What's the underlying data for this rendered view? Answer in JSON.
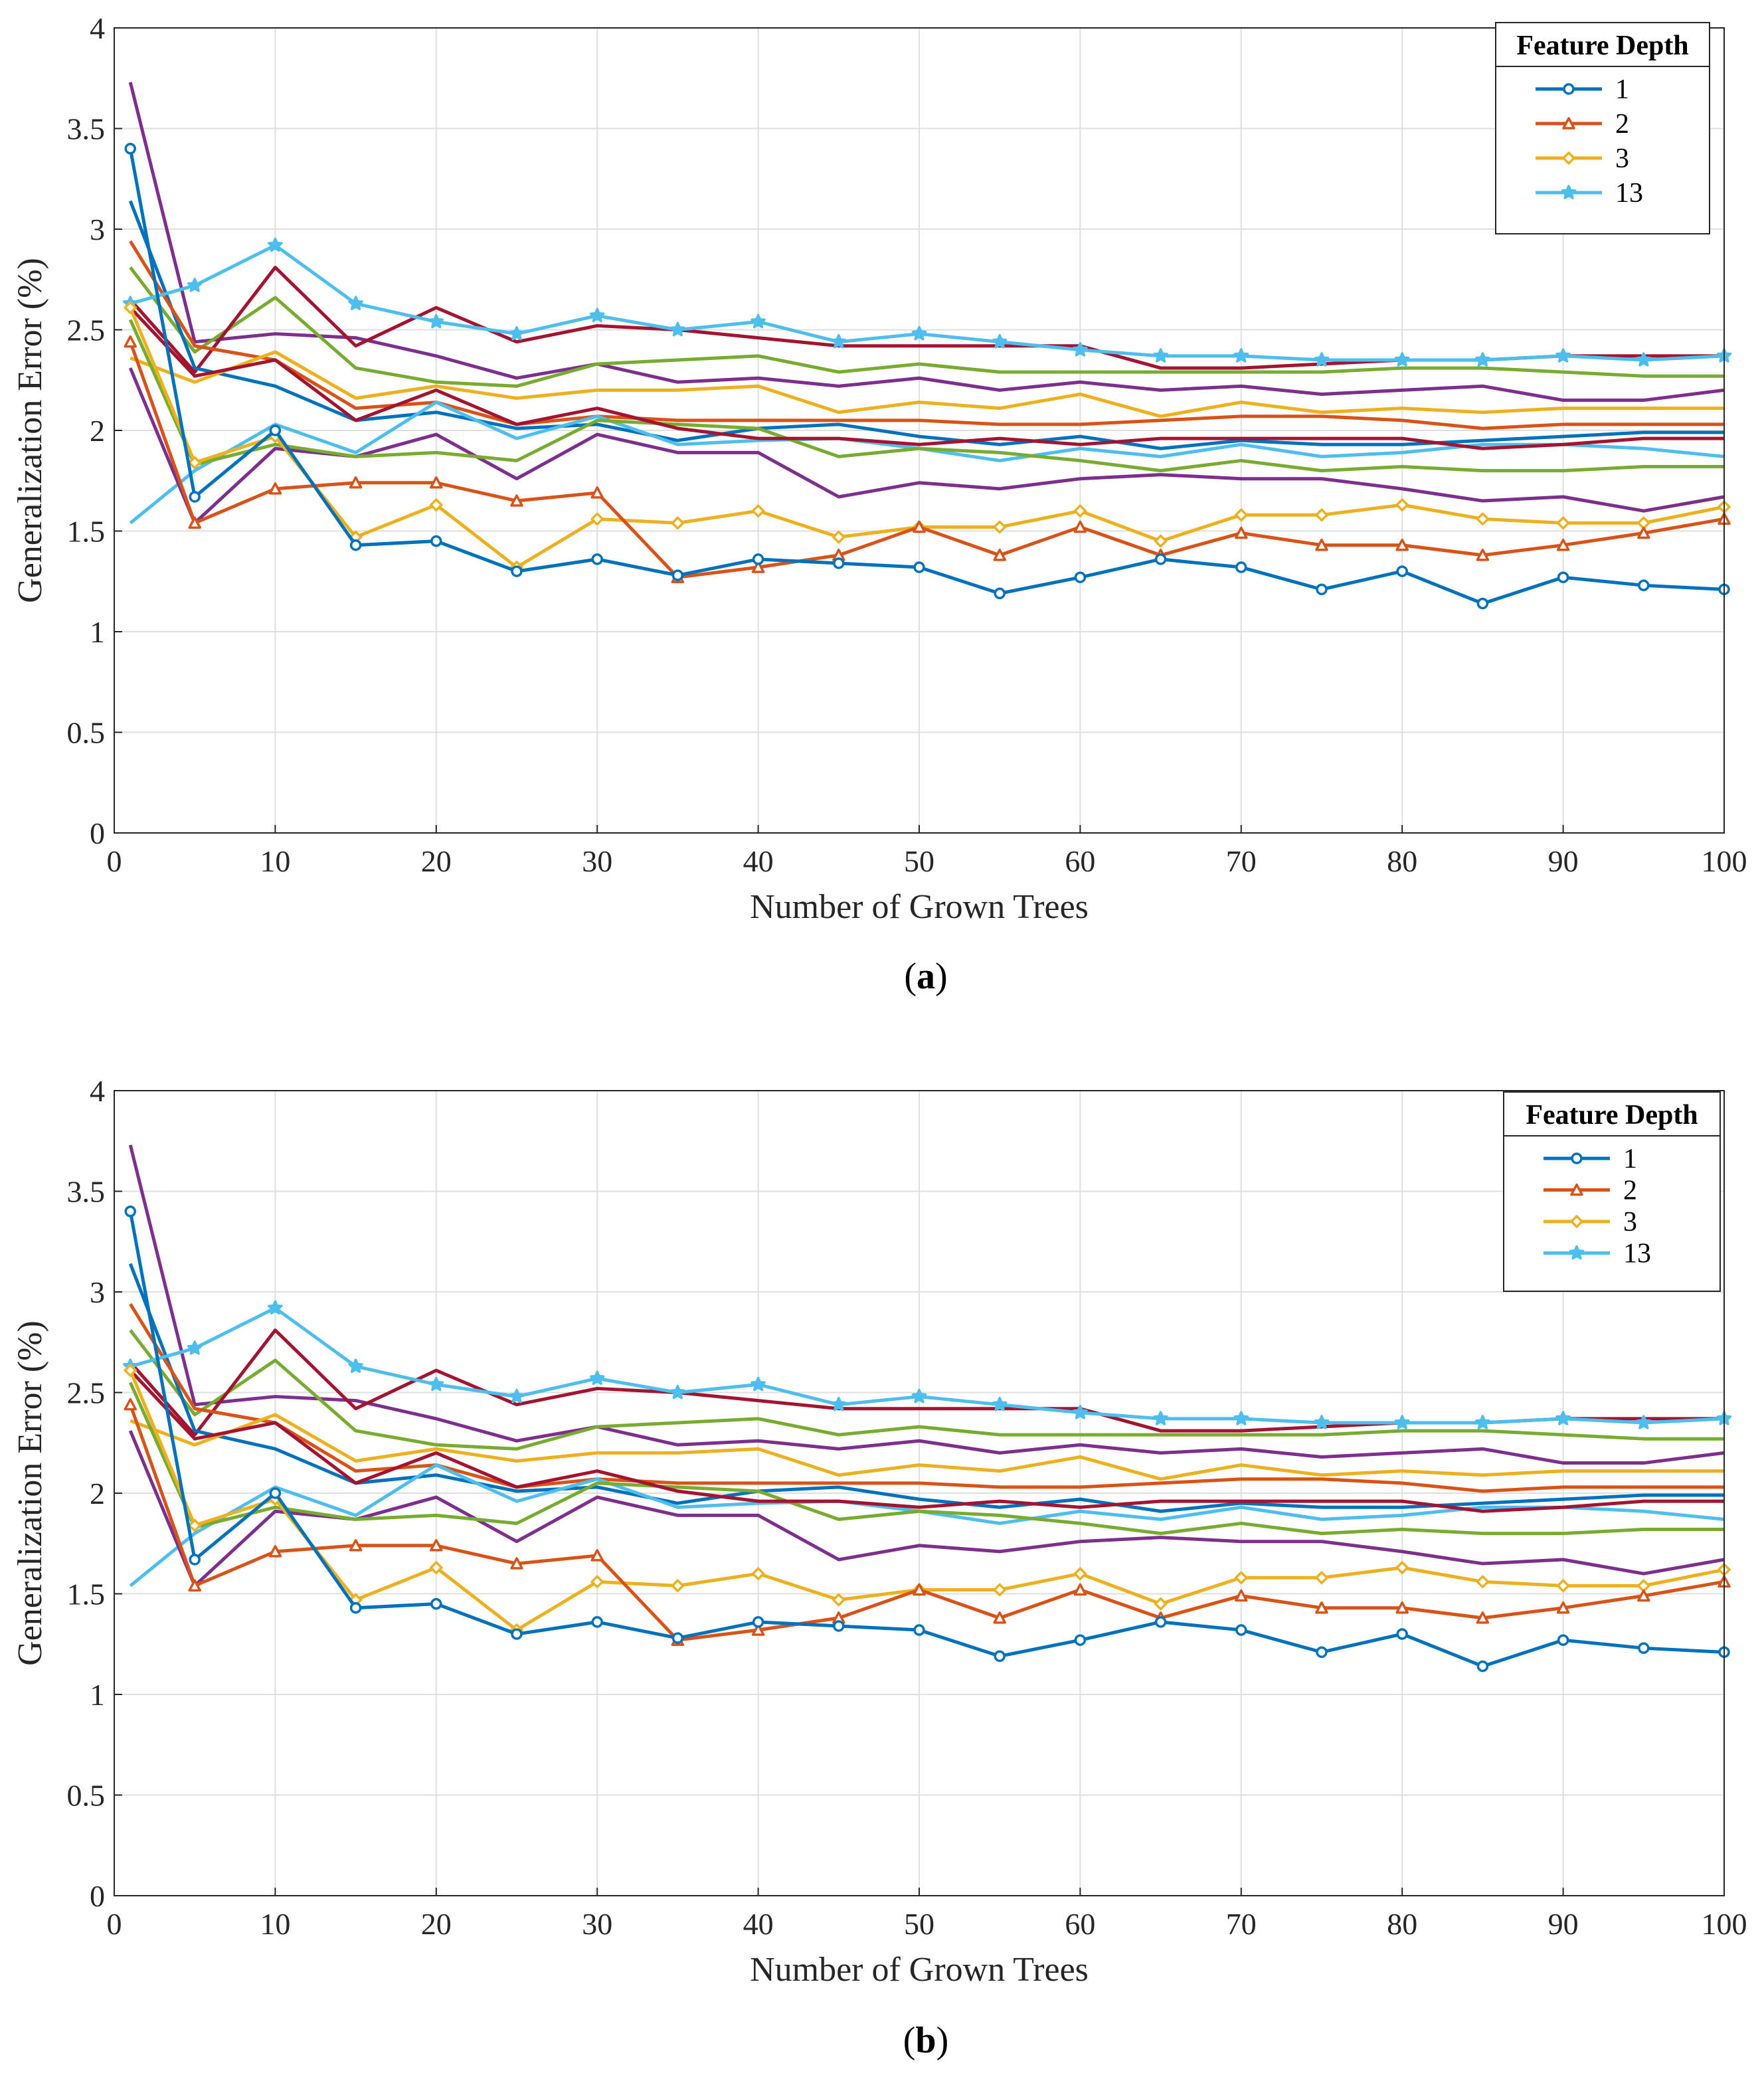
{
  "chart_data": [
    {
      "type": "line",
      "title": "",
      "caption_letter": "a",
      "xlabel": "Number of Grown Trees",
      "ylabel": "Generalization Error (%)",
      "xlim": [
        0,
        100
      ],
      "ylim": [
        0,
        4
      ],
      "grid": true,
      "x_ticks": [
        "0",
        "10",
        "20",
        "30",
        "40",
        "50",
        "60",
        "70",
        "80",
        "90",
        "100"
      ],
      "y_ticks": [
        "0",
        "0.5",
        "1",
        "1.5",
        "2",
        "2.5",
        "3",
        "3.5",
        "4"
      ],
      "legend": {
        "title": "Feature Depth",
        "placement": "top-right",
        "entries": [
          "1",
          "2",
          "3",
          "13"
        ]
      },
      "x": [
        1,
        5,
        10,
        15,
        20,
        25,
        30,
        35,
        40,
        45,
        50,
        55,
        60,
        65,
        70,
        75,
        80,
        85,
        90,
        95,
        100
      ],
      "series": [
        {
          "name": "1",
          "color": "#0072BD",
          "marker": "circle",
          "values": [
            3.4,
            1.67,
            2.0,
            1.43,
            1.45,
            1.3,
            1.36,
            1.28,
            1.36,
            1.34,
            1.32,
            1.19,
            1.27,
            1.36,
            1.32,
            1.21,
            1.3,
            1.14,
            1.27,
            1.23,
            1.21
          ]
        },
        {
          "name": "2",
          "color": "#D95319",
          "marker": "triangle",
          "values": [
            2.44,
            1.54,
            1.71,
            1.74,
            1.74,
            1.65,
            1.69,
            1.27,
            1.32,
            1.38,
            1.52,
            1.38,
            1.52,
            1.38,
            1.49,
            1.43,
            1.43,
            1.38,
            1.43,
            1.49,
            1.56
          ]
        },
        {
          "name": "3",
          "color": "#EDB120",
          "marker": "diamond",
          "values": [
            2.61,
            1.84,
            1.97,
            1.47,
            1.63,
            1.32,
            1.56,
            1.54,
            1.6,
            1.47,
            1.52,
            1.52,
            1.6,
            1.45,
            1.58,
            1.58,
            1.63,
            1.56,
            1.54,
            1.54,
            1.62
          ]
        },
        {
          "name": "13",
          "color": "#4DBEEE",
          "marker": "star",
          "values": [
            2.63,
            2.72,
            2.92,
            2.63,
            2.54,
            2.48,
            2.57,
            2.5,
            2.54,
            2.44,
            2.48,
            2.44,
            2.4,
            2.37,
            2.37,
            2.35,
            2.35,
            2.35,
            2.37,
            2.35,
            2.37
          ]
        },
        {
          "name": "",
          "color": "#7E2F8E",
          "marker": "none",
          "values": [
            3.73,
            2.44,
            2.48,
            2.46,
            2.37,
            2.26,
            2.33,
            2.24,
            2.26,
            2.22,
            2.26,
            2.2,
            2.24,
            2.2,
            2.22,
            2.18,
            2.2,
            2.22,
            2.15,
            2.15,
            2.2
          ]
        },
        {
          "name": "",
          "color": "#77AC30",
          "marker": "none",
          "values": [
            2.81,
            2.39,
            2.66,
            2.31,
            2.24,
            2.22,
            2.33,
            2.35,
            2.37,
            2.29,
            2.33,
            2.29,
            2.29,
            2.29,
            2.29,
            2.29,
            2.31,
            2.31,
            2.29,
            2.27,
            2.27
          ]
        },
        {
          "name": "",
          "color": "#A2142F",
          "marker": "none",
          "values": [
            2.65,
            2.29,
            2.81,
            2.42,
            2.61,
            2.44,
            2.52,
            2.5,
            2.46,
            2.42,
            2.42,
            2.42,
            2.42,
            2.31,
            2.31,
            2.33,
            2.35,
            2.35,
            2.37,
            2.37,
            2.37
          ]
        },
        {
          "name": "",
          "color": "#0072BD",
          "marker": "none",
          "values": [
            3.14,
            2.31,
            2.22,
            2.05,
            2.09,
            2.01,
            2.03,
            1.95,
            2.01,
            2.03,
            1.97,
            1.93,
            1.97,
            1.91,
            1.95,
            1.93,
            1.93,
            1.95,
            1.97,
            1.99,
            1.99
          ]
        },
        {
          "name": "",
          "color": "#D95319",
          "marker": "none",
          "values": [
            2.94,
            2.42,
            2.35,
            2.11,
            2.14,
            2.03,
            2.07,
            2.05,
            2.05,
            2.05,
            2.05,
            2.03,
            2.03,
            2.05,
            2.07,
            2.07,
            2.05,
            2.01,
            2.03,
            2.03,
            2.03
          ]
        },
        {
          "name": "",
          "color": "#EDB120",
          "marker": "none",
          "values": [
            2.36,
            2.24,
            2.39,
            2.16,
            2.22,
            2.16,
            2.2,
            2.2,
            2.22,
            2.09,
            2.14,
            2.11,
            2.18,
            2.07,
            2.14,
            2.09,
            2.11,
            2.09,
            2.11,
            2.11,
            2.11
          ]
        },
        {
          "name": "",
          "color": "#4DBEEE",
          "marker": "none",
          "values": [
            1.54,
            1.8,
            2.03,
            1.89,
            2.14,
            1.96,
            2.07,
            1.93,
            1.95,
            1.96,
            1.91,
            1.85,
            1.91,
            1.87,
            1.93,
            1.87,
            1.89,
            1.93,
            1.93,
            1.91,
            1.87
          ]
        },
        {
          "name": "",
          "color": "#7E2F8E",
          "marker": "none",
          "values": [
            2.31,
            1.54,
            1.91,
            1.87,
            1.98,
            1.76,
            1.98,
            1.89,
            1.89,
            1.67,
            1.74,
            1.71,
            1.76,
            1.78,
            1.76,
            1.76,
            1.71,
            1.65,
            1.67,
            1.6,
            1.67
          ]
        },
        {
          "name": "",
          "color": "#77AC30",
          "marker": "none",
          "values": [
            2.55,
            1.83,
            1.93,
            1.87,
            1.89,
            1.85,
            2.05,
            2.03,
            2.01,
            1.87,
            1.91,
            1.89,
            1.85,
            1.8,
            1.85,
            1.8,
            1.82,
            1.8,
            1.8,
            1.82,
            1.82
          ]
        },
        {
          "name": "",
          "color": "#A2142F",
          "marker": "none",
          "values": [
            2.61,
            2.27,
            2.35,
            2.05,
            2.2,
            2.03,
            2.11,
            2.01,
            1.96,
            1.96,
            1.93,
            1.96,
            1.93,
            1.96,
            1.96,
            1.96,
            1.96,
            1.91,
            1.93,
            1.96,
            1.96
          ]
        }
      ]
    },
    {
      "type": "line",
      "title": "",
      "caption_letter": "b",
      "xlabel": "Number of Grown Trees",
      "ylabel": "Generalization Error (%)",
      "xlim": [
        0,
        100
      ],
      "ylim": [
        0,
        4
      ],
      "grid": true,
      "x_ticks": [
        "0",
        "10",
        "20",
        "30",
        "40",
        "50",
        "60",
        "70",
        "80",
        "90",
        "100"
      ],
      "y_ticks": [
        "0",
        "0.5",
        "1",
        "1.5",
        "2",
        "2.5",
        "3",
        "3.5",
        "4"
      ],
      "legend": {
        "title": "Feature Depth",
        "placement": "top-right",
        "entries": [
          "1",
          "2",
          "3",
          "13"
        ]
      },
      "x": [
        1,
        5,
        10,
        15,
        20,
        25,
        30,
        35,
        40,
        45,
        50,
        55,
        60,
        65,
        70,
        75,
        80,
        85,
        90,
        95,
        100
      ],
      "series": [
        {
          "name": "1",
          "color": "#0072BD",
          "marker": "circle",
          "values": [
            3.4,
            1.67,
            2.0,
            1.43,
            1.45,
            1.3,
            1.36,
            1.28,
            1.36,
            1.34,
            1.32,
            1.19,
            1.27,
            1.36,
            1.32,
            1.21,
            1.3,
            1.14,
            1.27,
            1.23,
            1.21
          ]
        },
        {
          "name": "2",
          "color": "#D95319",
          "marker": "triangle",
          "values": [
            2.44,
            1.54,
            1.71,
            1.74,
            1.74,
            1.65,
            1.69,
            1.27,
            1.32,
            1.38,
            1.52,
            1.38,
            1.52,
            1.38,
            1.49,
            1.43,
            1.43,
            1.38,
            1.43,
            1.49,
            1.56
          ]
        },
        {
          "name": "3",
          "color": "#EDB120",
          "marker": "diamond",
          "values": [
            2.61,
            1.84,
            1.97,
            1.47,
            1.63,
            1.32,
            1.56,
            1.54,
            1.6,
            1.47,
            1.52,
            1.52,
            1.6,
            1.45,
            1.58,
            1.58,
            1.63,
            1.56,
            1.54,
            1.54,
            1.62
          ]
        },
        {
          "name": "13",
          "color": "#4DBEEE",
          "marker": "star",
          "values": [
            2.63,
            2.72,
            2.92,
            2.63,
            2.54,
            2.48,
            2.57,
            2.5,
            2.54,
            2.44,
            2.48,
            2.44,
            2.4,
            2.37,
            2.37,
            2.35,
            2.35,
            2.35,
            2.37,
            2.35,
            2.37
          ]
        },
        {
          "name": "",
          "color": "#7E2F8E",
          "marker": "none",
          "values": [
            3.73,
            2.44,
            2.48,
            2.46,
            2.37,
            2.26,
            2.33,
            2.24,
            2.26,
            2.22,
            2.26,
            2.2,
            2.24,
            2.2,
            2.22,
            2.18,
            2.2,
            2.22,
            2.15,
            2.15,
            2.2
          ]
        },
        {
          "name": "",
          "color": "#77AC30",
          "marker": "none",
          "values": [
            2.81,
            2.39,
            2.66,
            2.31,
            2.24,
            2.22,
            2.33,
            2.35,
            2.37,
            2.29,
            2.33,
            2.29,
            2.29,
            2.29,
            2.29,
            2.29,
            2.31,
            2.31,
            2.29,
            2.27,
            2.27
          ]
        },
        {
          "name": "",
          "color": "#A2142F",
          "marker": "none",
          "values": [
            2.65,
            2.29,
            2.81,
            2.42,
            2.61,
            2.44,
            2.52,
            2.5,
            2.46,
            2.42,
            2.42,
            2.42,
            2.42,
            2.31,
            2.31,
            2.33,
            2.35,
            2.35,
            2.37,
            2.37,
            2.37
          ]
        },
        {
          "name": "",
          "color": "#0072BD",
          "marker": "none",
          "values": [
            3.14,
            2.31,
            2.22,
            2.05,
            2.09,
            2.01,
            2.03,
            1.95,
            2.01,
            2.03,
            1.97,
            1.93,
            1.97,
            1.91,
            1.95,
            1.93,
            1.93,
            1.95,
            1.97,
            1.99,
            1.99
          ]
        },
        {
          "name": "",
          "color": "#D95319",
          "marker": "none",
          "values": [
            2.94,
            2.42,
            2.35,
            2.11,
            2.14,
            2.03,
            2.07,
            2.05,
            2.05,
            2.05,
            2.05,
            2.03,
            2.03,
            2.05,
            2.07,
            2.07,
            2.05,
            2.01,
            2.03,
            2.03,
            2.03
          ]
        },
        {
          "name": "",
          "color": "#EDB120",
          "marker": "none",
          "values": [
            2.36,
            2.24,
            2.39,
            2.16,
            2.22,
            2.16,
            2.2,
            2.2,
            2.22,
            2.09,
            2.14,
            2.11,
            2.18,
            2.07,
            2.14,
            2.09,
            2.11,
            2.09,
            2.11,
            2.11,
            2.11
          ]
        },
        {
          "name": "",
          "color": "#4DBEEE",
          "marker": "none",
          "values": [
            1.54,
            1.8,
            2.03,
            1.89,
            2.14,
            1.96,
            2.07,
            1.93,
            1.95,
            1.96,
            1.91,
            1.85,
            1.91,
            1.87,
            1.93,
            1.87,
            1.89,
            1.93,
            1.93,
            1.91,
            1.87
          ]
        },
        {
          "name": "",
          "color": "#7E2F8E",
          "marker": "none",
          "values": [
            2.31,
            1.54,
            1.91,
            1.87,
            1.98,
            1.76,
            1.98,
            1.89,
            1.89,
            1.67,
            1.74,
            1.71,
            1.76,
            1.78,
            1.76,
            1.76,
            1.71,
            1.65,
            1.67,
            1.6,
            1.67
          ]
        },
        {
          "name": "",
          "color": "#77AC30",
          "marker": "none",
          "values": [
            2.55,
            1.83,
            1.93,
            1.87,
            1.89,
            1.85,
            2.05,
            2.03,
            2.01,
            1.87,
            1.91,
            1.89,
            1.85,
            1.8,
            1.85,
            1.8,
            1.82,
            1.8,
            1.8,
            1.82,
            1.82
          ]
        },
        {
          "name": "",
          "color": "#A2142F",
          "marker": "none",
          "values": [
            2.61,
            2.27,
            2.35,
            2.05,
            2.2,
            2.03,
            2.11,
            2.01,
            1.96,
            1.96,
            1.93,
            1.96,
            1.93,
            1.96,
            1.96,
            1.96,
            1.96,
            1.91,
            1.93,
            1.96,
            1.96
          ]
        }
      ]
    }
  ]
}
